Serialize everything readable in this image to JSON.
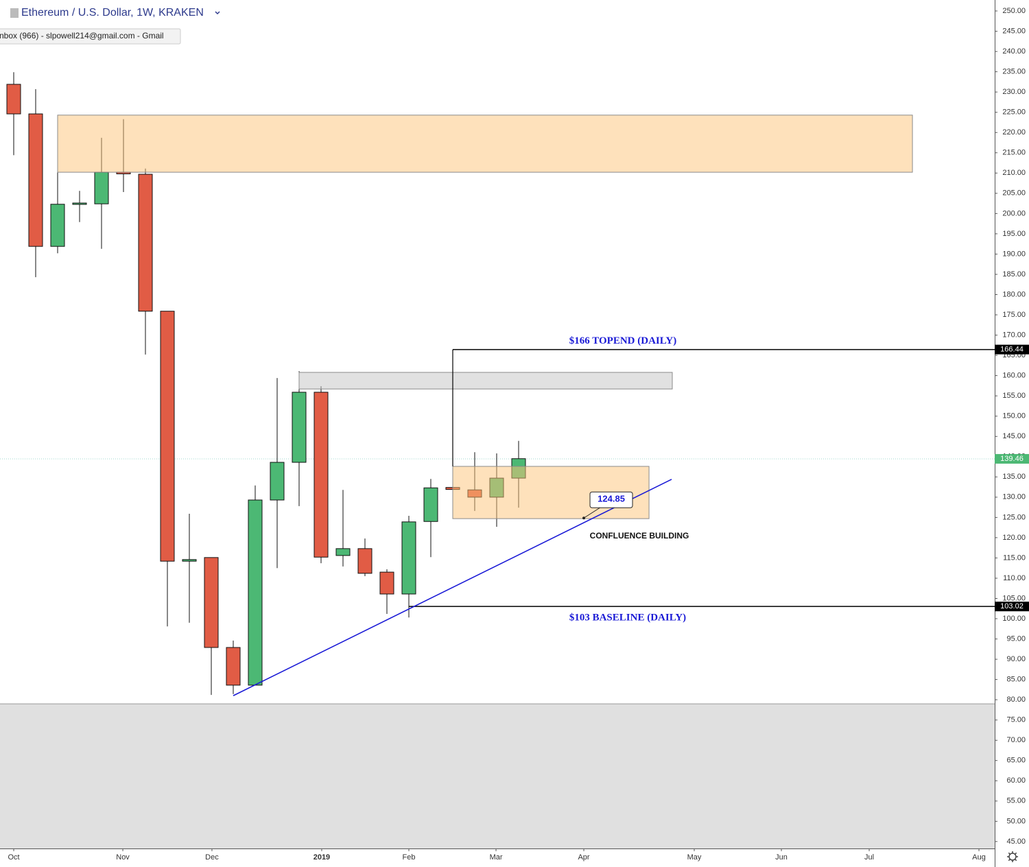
{
  "chart_data": {
    "type": "candlestick",
    "title": "Ethereum / U.S. Dollar, 1W, KRAKEN",
    "tooltip": "nbox (966) - slpowell214@gmail.com - Gmail",
    "x": [
      0,
      1,
      2,
      3,
      4,
      5,
      6,
      7,
      8,
      9,
      10,
      11,
      12,
      13,
      14,
      15,
      16,
      17,
      18,
      19,
      20,
      21,
      22,
      23
    ],
    "open": [
      231.9,
      224.6,
      191.9,
      202.3,
      202.4,
      210.2,
      209.7,
      175.9,
      114.2,
      115.1,
      92.9,
      83.6,
      129.3,
      138.6,
      155.9,
      115.6,
      117.3,
      111.5,
      106.1,
      124.0,
      132.4,
      131.8,
      130.0,
      134.7
    ],
    "high": [
      234.9,
      230.7,
      220.0,
      205.6,
      218.7,
      223.3,
      211.1,
      175.9,
      125.9,
      115.1,
      94.6,
      132.9,
      159.4,
      161.1,
      157.4,
      131.8,
      119.8,
      112.2,
      125.4,
      134.5,
      132.6,
      141.1,
      140.8,
      143.9
    ],
    "low": [
      214.4,
      184.3,
      190.2,
      197.9,
      191.3,
      205.3,
      165.2,
      98.1,
      99.0,
      81.2,
      81.4,
      83.6,
      112.5,
      127.8,
      113.7,
      112.9,
      110.5,
      101.2,
      100.3,
      115.2,
      131.7,
      126.6,
      122.7,
      127.4
    ],
    "close": [
      224.6,
      191.9,
      202.3,
      202.6,
      210.2,
      209.8,
      175.9,
      114.2,
      114.6,
      92.9,
      83.6,
      129.3,
      138.6,
      155.9,
      115.2,
      117.3,
      111.2,
      106.1,
      123.9,
      132.3,
      131.9,
      130.0,
      134.7,
      139.5
    ],
    "up_color": "#4cb874",
    "down_color": "#e15c45",
    "xlim": [
      -0.625,
      44.6875
    ],
    "ylim": [
      43.29,
      252.71
    ],
    "xticks": [
      {
        "value": 0,
        "label": "Oct"
      },
      {
        "value": 4.97,
        "label": "Nov"
      },
      {
        "value": 9.03,
        "label": "Dec"
      },
      {
        "value": 14.03,
        "label": "2019"
      },
      {
        "value": 18.0,
        "label": "Feb"
      },
      {
        "value": 21.97,
        "label": "Mar"
      },
      {
        "value": 25.97,
        "label": "Apr"
      },
      {
        "value": 31.0,
        "label": "May"
      },
      {
        "value": 34.97,
        "label": "Jun"
      },
      {
        "value": 38.97,
        "label": "Jul"
      },
      {
        "value": 43.97,
        "label": "Aug"
      }
    ],
    "yticks": [
      {
        "value": 45,
        "label": "45.00"
      },
      {
        "value": 50,
        "label": "50.00"
      },
      {
        "value": 55,
        "label": "55.00"
      },
      {
        "value": 60,
        "label": "60.00"
      },
      {
        "value": 65,
        "label": "65.00"
      },
      {
        "value": 70,
        "label": "70.00"
      },
      {
        "value": 75,
        "label": "75.00"
      },
      {
        "value": 80,
        "label": "80.00"
      },
      {
        "value": 85,
        "label": "85.00"
      },
      {
        "value": 90,
        "label": "90.00"
      },
      {
        "value": 95,
        "label": "95.00"
      },
      {
        "value": 100,
        "label": "100.00"
      },
      {
        "value": 105,
        "label": "105.00"
      },
      {
        "value": 110,
        "label": "110.00"
      },
      {
        "value": 115,
        "label": "115.00"
      },
      {
        "value": 120,
        "label": "120.00"
      },
      {
        "value": 125,
        "label": "125.00"
      },
      {
        "value": 130,
        "label": "130.00"
      },
      {
        "value": 135,
        "label": "135.00"
      },
      {
        "value": 140,
        "label": "140.00"
      },
      {
        "value": 145,
        "label": "145.00"
      },
      {
        "value": 150,
        "label": "150.00"
      },
      {
        "value": 155,
        "label": "155.00"
      },
      {
        "value": 160,
        "label": "160.00"
      },
      {
        "value": 165,
        "label": "165.00"
      },
      {
        "value": 170,
        "label": "170.00"
      },
      {
        "value": 175,
        "label": "175.00"
      },
      {
        "value": 180,
        "label": "180.00"
      },
      {
        "value": 185,
        "label": "185.00"
      },
      {
        "value": 190,
        "label": "190.00"
      },
      {
        "value": 195,
        "label": "195.00"
      },
      {
        "value": 200,
        "label": "200.00"
      },
      {
        "value": 205,
        "label": "205.00"
      },
      {
        "value": 210,
        "label": "210.00"
      },
      {
        "value": 215,
        "label": "215.00"
      },
      {
        "value": 220,
        "label": "220.00"
      },
      {
        "value": 225,
        "label": "225.00"
      },
      {
        "value": 230,
        "label": "230.00"
      },
      {
        "value": 235,
        "label": "235.00"
      },
      {
        "value": 240,
        "label": "240.00"
      },
      {
        "value": 245,
        "label": "245.00"
      },
      {
        "value": 250,
        "label": "250.00"
      }
    ],
    "grid": false,
    "zones": [
      {
        "x": [
          -0.625,
          44.6875
        ],
        "y": [
          43.29,
          79.0
        ],
        "color": "#e0e0e0"
      },
      {
        "x": [
          2,
          40.94
        ],
        "y": [
          210.2,
          224.3
        ],
        "color": "rgba(253,196,120,0.5)"
      },
      {
        "x": [
          13,
          30.0
        ],
        "y": [
          156.7,
          160.8
        ],
        "color": "rgba(200,200,200,0.55)"
      },
      {
        "x": [
          20,
          28.94
        ],
        "y": [
          124.7,
          137.6
        ],
        "color": "rgba(253,196,120,0.5)"
      }
    ],
    "levels": [
      {
        "value": 166.44,
        "x_start": 20,
        "text": "$166 TOPEND (DAILY)"
      },
      {
        "value": 103.02,
        "x_start": 18,
        "text": "$103 BASELINE (DAILY)"
      }
    ],
    "last_price": 139.46,
    "trendline": {
      "x": [
        10,
        29.97
      ],
      "y": [
        81.0,
        134.4
      ],
      "color": "#1a1ad6"
    },
    "callout": {
      "x": 25.97,
      "value": 124.85
    },
    "note": "CONFLUENCE BUILDING"
  }
}
